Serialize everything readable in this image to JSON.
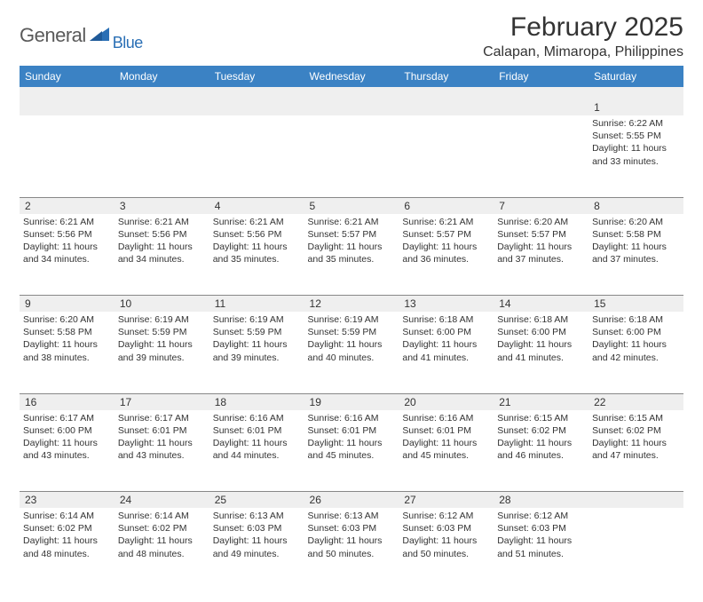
{
  "header": {
    "logo_general": "General",
    "logo_blue": "Blue",
    "title": "February 2025",
    "location": "Calapan, Mimaropa, Philippines"
  },
  "colors": {
    "header_bg": "#3b82c4",
    "header_text": "#ffffff",
    "stripe_bg": "#efefef",
    "border": "#888888",
    "text": "#333333",
    "logo_gray": "#5a5a5a",
    "logo_blue": "#2a6fb5"
  },
  "weekdays": [
    "Sunday",
    "Monday",
    "Tuesday",
    "Wednesday",
    "Thursday",
    "Friday",
    "Saturday"
  ],
  "weeks": [
    {
      "nums": [
        "",
        "",
        "",
        "",
        "",
        "",
        "1"
      ],
      "cells": [
        null,
        null,
        null,
        null,
        null,
        null,
        {
          "sunrise": "Sunrise: 6:22 AM",
          "sunset": "Sunset: 5:55 PM",
          "daylight": "Daylight: 11 hours and 33 minutes."
        }
      ]
    },
    {
      "nums": [
        "2",
        "3",
        "4",
        "5",
        "6",
        "7",
        "8"
      ],
      "cells": [
        {
          "sunrise": "Sunrise: 6:21 AM",
          "sunset": "Sunset: 5:56 PM",
          "daylight": "Daylight: 11 hours and 34 minutes."
        },
        {
          "sunrise": "Sunrise: 6:21 AM",
          "sunset": "Sunset: 5:56 PM",
          "daylight": "Daylight: 11 hours and 34 minutes."
        },
        {
          "sunrise": "Sunrise: 6:21 AM",
          "sunset": "Sunset: 5:56 PM",
          "daylight": "Daylight: 11 hours and 35 minutes."
        },
        {
          "sunrise": "Sunrise: 6:21 AM",
          "sunset": "Sunset: 5:57 PM",
          "daylight": "Daylight: 11 hours and 35 minutes."
        },
        {
          "sunrise": "Sunrise: 6:21 AM",
          "sunset": "Sunset: 5:57 PM",
          "daylight": "Daylight: 11 hours and 36 minutes."
        },
        {
          "sunrise": "Sunrise: 6:20 AM",
          "sunset": "Sunset: 5:57 PM",
          "daylight": "Daylight: 11 hours and 37 minutes."
        },
        {
          "sunrise": "Sunrise: 6:20 AM",
          "sunset": "Sunset: 5:58 PM",
          "daylight": "Daylight: 11 hours and 37 minutes."
        }
      ]
    },
    {
      "nums": [
        "9",
        "10",
        "11",
        "12",
        "13",
        "14",
        "15"
      ],
      "cells": [
        {
          "sunrise": "Sunrise: 6:20 AM",
          "sunset": "Sunset: 5:58 PM",
          "daylight": "Daylight: 11 hours and 38 minutes."
        },
        {
          "sunrise": "Sunrise: 6:19 AM",
          "sunset": "Sunset: 5:59 PM",
          "daylight": "Daylight: 11 hours and 39 minutes."
        },
        {
          "sunrise": "Sunrise: 6:19 AM",
          "sunset": "Sunset: 5:59 PM",
          "daylight": "Daylight: 11 hours and 39 minutes."
        },
        {
          "sunrise": "Sunrise: 6:19 AM",
          "sunset": "Sunset: 5:59 PM",
          "daylight": "Daylight: 11 hours and 40 minutes."
        },
        {
          "sunrise": "Sunrise: 6:18 AM",
          "sunset": "Sunset: 6:00 PM",
          "daylight": "Daylight: 11 hours and 41 minutes."
        },
        {
          "sunrise": "Sunrise: 6:18 AM",
          "sunset": "Sunset: 6:00 PM",
          "daylight": "Daylight: 11 hours and 41 minutes."
        },
        {
          "sunrise": "Sunrise: 6:18 AM",
          "sunset": "Sunset: 6:00 PM",
          "daylight": "Daylight: 11 hours and 42 minutes."
        }
      ]
    },
    {
      "nums": [
        "16",
        "17",
        "18",
        "19",
        "20",
        "21",
        "22"
      ],
      "cells": [
        {
          "sunrise": "Sunrise: 6:17 AM",
          "sunset": "Sunset: 6:00 PM",
          "daylight": "Daylight: 11 hours and 43 minutes."
        },
        {
          "sunrise": "Sunrise: 6:17 AM",
          "sunset": "Sunset: 6:01 PM",
          "daylight": "Daylight: 11 hours and 43 minutes."
        },
        {
          "sunrise": "Sunrise: 6:16 AM",
          "sunset": "Sunset: 6:01 PM",
          "daylight": "Daylight: 11 hours and 44 minutes."
        },
        {
          "sunrise": "Sunrise: 6:16 AM",
          "sunset": "Sunset: 6:01 PM",
          "daylight": "Daylight: 11 hours and 45 minutes."
        },
        {
          "sunrise": "Sunrise: 6:16 AM",
          "sunset": "Sunset: 6:01 PM",
          "daylight": "Daylight: 11 hours and 45 minutes."
        },
        {
          "sunrise": "Sunrise: 6:15 AM",
          "sunset": "Sunset: 6:02 PM",
          "daylight": "Daylight: 11 hours and 46 minutes."
        },
        {
          "sunrise": "Sunrise: 6:15 AM",
          "sunset": "Sunset: 6:02 PM",
          "daylight": "Daylight: 11 hours and 47 minutes."
        }
      ]
    },
    {
      "nums": [
        "23",
        "24",
        "25",
        "26",
        "27",
        "28",
        ""
      ],
      "cells": [
        {
          "sunrise": "Sunrise: 6:14 AM",
          "sunset": "Sunset: 6:02 PM",
          "daylight": "Daylight: 11 hours and 48 minutes."
        },
        {
          "sunrise": "Sunrise: 6:14 AM",
          "sunset": "Sunset: 6:02 PM",
          "daylight": "Daylight: 11 hours and 48 minutes."
        },
        {
          "sunrise": "Sunrise: 6:13 AM",
          "sunset": "Sunset: 6:03 PM",
          "daylight": "Daylight: 11 hours and 49 minutes."
        },
        {
          "sunrise": "Sunrise: 6:13 AM",
          "sunset": "Sunset: 6:03 PM",
          "daylight": "Daylight: 11 hours and 50 minutes."
        },
        {
          "sunrise": "Sunrise: 6:12 AM",
          "sunset": "Sunset: 6:03 PM",
          "daylight": "Daylight: 11 hours and 50 minutes."
        },
        {
          "sunrise": "Sunrise: 6:12 AM",
          "sunset": "Sunset: 6:03 PM",
          "daylight": "Daylight: 11 hours and 51 minutes."
        },
        null
      ]
    }
  ]
}
